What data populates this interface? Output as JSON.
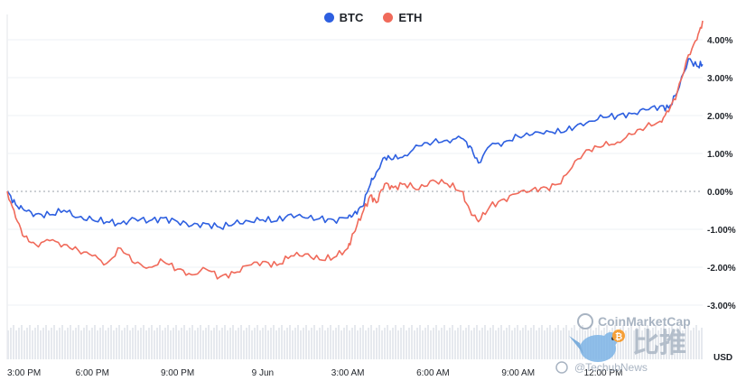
{
  "chart_data": {
    "type": "line",
    "title": "",
    "ylabel": "",
    "y_unit_label": "USD",
    "ylim": [
      -3.4,
      4.7
    ],
    "yticks": [
      4,
      3,
      2,
      1,
      0,
      -1,
      -2,
      -3
    ],
    "ytick_labels": [
      "4.00%",
      "3.00%",
      "2.00%",
      "1.00%",
      "0.00%",
      "-1.00%",
      "-2.00%",
      "-3.00%"
    ],
    "xlim": [
      0,
      24.5
    ],
    "xticks": [
      0,
      3,
      6,
      9,
      12,
      15,
      18,
      21,
      24
    ],
    "xtick_labels": [
      "3:00 PM",
      "6:00 PM",
      "9:00 PM",
      "9 Jun",
      "3:00 AM",
      "6:00 AM",
      "9:00 AM",
      "12:00 PM",
      ""
    ],
    "legend_position": "top-center",
    "grid": true,
    "series": [
      {
        "name": "BTC",
        "color": "#2d5fe0",
        "x": [
          0,
          0.3,
          0.6,
          1.0,
          1.5,
          2.0,
          2.5,
          3.0,
          3.5,
          4.0,
          4.5,
          5.0,
          5.5,
          6.0,
          6.5,
          7.0,
          7.5,
          8.0,
          8.5,
          9.0,
          9.5,
          10.0,
          10.5,
          11.0,
          11.5,
          12.0,
          12.2,
          12.5,
          12.8,
          13.0,
          13.3,
          13.6,
          14.0,
          14.5,
          15.0,
          15.5,
          16.0,
          16.3,
          16.6,
          17.0,
          17.5,
          18.0,
          18.5,
          19.0,
          19.5,
          20.0,
          20.5,
          21.0,
          21.5,
          22.0,
          22.5,
          23.0,
          23.3,
          23.6,
          24.0,
          24.3,
          24.5
        ],
        "y": [
          0,
          -0.35,
          -0.5,
          -0.6,
          -0.62,
          -0.5,
          -0.68,
          -0.75,
          -0.8,
          -0.85,
          -0.72,
          -0.78,
          -0.7,
          -0.8,
          -0.9,
          -0.85,
          -0.95,
          -0.85,
          -0.78,
          -0.75,
          -0.78,
          -0.6,
          -0.7,
          -0.72,
          -0.75,
          -0.7,
          -0.6,
          -0.4,
          0.2,
          0.5,
          0.9,
          0.85,
          0.95,
          1.2,
          1.3,
          1.35,
          1.4,
          1.2,
          0.75,
          1.2,
          1.3,
          1.45,
          1.5,
          1.6,
          1.55,
          1.7,
          1.85,
          1.95,
          2.0,
          2.05,
          2.15,
          2.25,
          2.2,
          2.6,
          3.5,
          3.3,
          3.35
        ]
      },
      {
        "name": "ETH",
        "color": "#f06a5a",
        "x": [
          0,
          0.3,
          0.6,
          1.0,
          1.5,
          2.0,
          2.5,
          3.0,
          3.5,
          4.0,
          4.5,
          5.0,
          5.5,
          6.0,
          6.5,
          7.0,
          7.5,
          8.0,
          8.5,
          9.0,
          9.5,
          10.0,
          10.5,
          11.0,
          11.5,
          12.0,
          12.2,
          12.5,
          12.8,
          13.0,
          13.3,
          13.6,
          14.0,
          14.5,
          15.0,
          15.5,
          16.0,
          16.3,
          16.6,
          17.0,
          17.5,
          18.0,
          18.5,
          19.0,
          19.5,
          20.0,
          20.5,
          21.0,
          21.5,
          22.0,
          22.5,
          23.0,
          23.3,
          23.6,
          24.0,
          24.3,
          24.5
        ],
        "y": [
          0,
          -0.7,
          -1.2,
          -1.4,
          -1.3,
          -1.4,
          -1.55,
          -1.7,
          -1.9,
          -1.5,
          -1.9,
          -2.0,
          -1.85,
          -2.05,
          -2.2,
          -2.05,
          -2.25,
          -2.15,
          -1.95,
          -1.85,
          -1.95,
          -1.7,
          -1.65,
          -1.8,
          -1.75,
          -1.5,
          -1.1,
          -0.6,
          -0.1,
          -0.3,
          0.2,
          0.1,
          0.2,
          0.05,
          0.3,
          0.2,
          0.0,
          -0.5,
          -0.8,
          -0.4,
          -0.2,
          -0.05,
          0.05,
          0.1,
          0.2,
          0.8,
          1.1,
          1.2,
          1.3,
          1.5,
          1.7,
          1.85,
          2.1,
          2.6,
          3.6,
          4.0,
          4.5
        ]
      }
    ]
  },
  "watermark": {
    "brand": "CoinMarketCap",
    "cn_text": "比推",
    "handle": "@TechubNews",
    "bitcoin_glyph": "₿",
    "icon": "bird-icon"
  },
  "colors": {
    "gridline": "#eef0f4",
    "zero_line": "#9aa0aa",
    "volume_fill": "#e6e9ee"
  }
}
